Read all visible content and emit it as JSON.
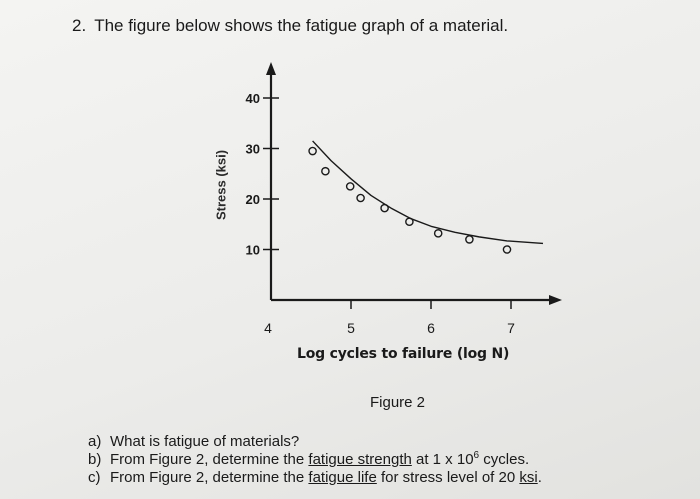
{
  "question": {
    "number": "2.",
    "text": "The figure below shows the fatigue graph of a material."
  },
  "chart_data": {
    "type": "scatter",
    "xlabel": "Log cycles to failure (log N)",
    "ylabel": "Stress (ksi)",
    "xticks": [
      "4",
      "5",
      "6",
      "7"
    ],
    "yticks": [
      "10",
      "20",
      "30",
      "40"
    ],
    "xlim": [
      4,
      7.6
    ],
    "ylim": [
      0,
      44
    ],
    "grid": false,
    "points": {
      "x": [
        4.52,
        4.68,
        4.99,
        5.12,
        5.42,
        5.73,
        6.09,
        6.48,
        6.95
      ],
      "y": [
        29.5,
        25.5,
        22.5,
        20.2,
        18.2,
        15.5,
        13.2,
        12.0,
        10.0
      ]
    },
    "curve": {
      "x": [
        4.52,
        4.75,
        5.0,
        5.25,
        5.5,
        5.75,
        6.0,
        6.3,
        6.6,
        6.95,
        7.4
      ],
      "y": [
        31.5,
        27.6,
        24.0,
        20.7,
        18.2,
        16.1,
        14.6,
        13.4,
        12.5,
        11.7,
        11.2
      ]
    },
    "colors": {
      "axis": "#1a1a1a",
      "points": "#1a1a1a"
    }
  },
  "figure_caption": "Figure 2",
  "sub_questions": [
    {
      "mark": "a)",
      "text": "What is fatigue of materials?"
    },
    {
      "mark": "b)",
      "pre": "From Figure 2, determine the ",
      "underlined": "fatigue strength",
      "mid": " at 1 x 10",
      "sup": "6",
      "post": " cycles."
    },
    {
      "mark": "c)",
      "pre": "From Figure 2, determine the ",
      "underlined": "fatigue life",
      "mid": " for stress level of 20 ",
      "underlined2": "ksi",
      "post": "."
    }
  ]
}
